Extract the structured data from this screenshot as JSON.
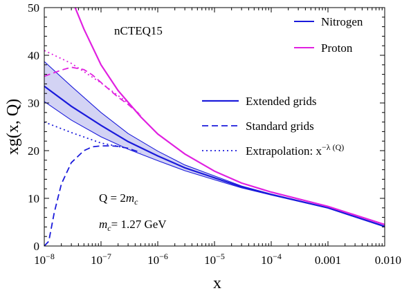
{
  "chart_data": {
    "type": "line",
    "title": "",
    "annotation": "nCTEQ15",
    "xlabel": "x",
    "ylabel": "xg(x, Q)",
    "xscale": "log",
    "xlim": [
      1e-08,
      0.01
    ],
    "ylim": [
      0,
      50
    ],
    "x_ticks": [
      {
        "value": 1e-08,
        "label": "10",
        "exp": "−8"
      },
      {
        "value": 1e-07,
        "label": "10",
        "exp": "−7"
      },
      {
        "value": 1e-06,
        "label": "10",
        "exp": "−6"
      },
      {
        "value": 1e-05,
        "label": "10",
        "exp": "−5"
      },
      {
        "value": 0.0001,
        "label": "10",
        "exp": "−4"
      },
      {
        "value": 0.001,
        "label": "0.001",
        "exp": ""
      },
      {
        "value": 0.01,
        "label": "0.010",
        "exp": ""
      }
    ],
    "y_ticks": [
      0,
      10,
      20,
      30,
      40,
      50
    ],
    "grid": false,
    "colors": {
      "nitrogen": "#1a1adb",
      "proton": "#e020e0",
      "band_fill": "#c4c4f0"
    },
    "legend_material": {
      "position": "top-right",
      "entries": [
        {
          "label": "Nitrogen",
          "color": "#1a1adb",
          "style": "solid"
        },
        {
          "label": "Proton",
          "color": "#e020e0",
          "style": "solid"
        }
      ]
    },
    "legend_method": {
      "position": "center-right",
      "entries": [
        {
          "label": "Extended grids",
          "style": "solid"
        },
        {
          "label": "Standard grids",
          "style": "dashed"
        },
        {
          "label": "Extrapolation: x",
          "sup": "−λ (Q)",
          "style": "dotted"
        }
      ]
    },
    "scale_note": {
      "q_prefix": "Q = 2",
      "q_var": "m",
      "q_sub": "c",
      "m_var": "m",
      "m_sub": "c",
      "m_value": "= 1.27 GeV"
    },
    "series": [
      {
        "name": "Nitrogen",
        "style": "solid",
        "color": "#1a1adb",
        "x": [
          1e-08,
          3e-08,
          1e-07,
          3e-07,
          1e-06,
          3e-06,
          1e-05,
          3e-05,
          0.0001,
          0.001,
          0.01
        ],
        "y": [
          33.5,
          29.3,
          25.3,
          21.9,
          18.9,
          16.4,
          14.3,
          12.4,
          10.8,
          8.0,
          4.1
        ]
      },
      {
        "name": "Nitrogen band upper",
        "style": "band",
        "color": "#1a1adb",
        "x": [
          1e-08,
          3e-08,
          1e-07,
          3e-07,
          1e-06,
          3e-06,
          1e-05,
          3e-05,
          0.0001,
          0.001,
          0.01
        ],
        "y": [
          38.7,
          33.5,
          28.0,
          23.6,
          19.9,
          17.0,
          14.7,
          12.6,
          10.9,
          8.05,
          4.2
        ]
      },
      {
        "name": "Nitrogen band lower",
        "style": "band",
        "color": "#1a1adb",
        "x": [
          1e-08,
          3e-08,
          1e-07,
          3e-07,
          1e-06,
          3e-06,
          1e-05,
          3e-05,
          0.0001,
          0.001,
          0.01
        ],
        "y": [
          30.3,
          26.4,
          22.9,
          20.3,
          17.9,
          15.8,
          13.9,
          12.2,
          10.7,
          7.95,
          4.0
        ]
      },
      {
        "name": "Nitrogen",
        "style": "dashed",
        "color": "#1a1adb",
        "x": [
          1e-08,
          1.2e-08,
          1.5e-08,
          2e-08,
          3e-08,
          5e-08,
          7e-08,
          1e-07,
          1.5e-07,
          2e-07,
          3e-07,
          5e-07
        ],
        "y": [
          0.0,
          1.0,
          7.0,
          13.0,
          17.5,
          20.0,
          20.8,
          21.0,
          21.0,
          20.9,
          20.5,
          19.6
        ]
      },
      {
        "name": "Nitrogen",
        "style": "dotted",
        "color": "#1a1adb",
        "x": [
          1e-08,
          3e-08,
          1e-07,
          2e-07,
          3e-07
        ],
        "y": [
          26.0,
          23.8,
          21.6,
          20.9,
          20.5
        ]
      },
      {
        "name": "Proton",
        "style": "solid",
        "color": "#e020e0",
        "x": [
          3.5e-08,
          5e-08,
          1e-07,
          2e-07,
          5e-07,
          1e-06,
          3e-06,
          1e-05,
          3e-05,
          0.0001,
          0.001,
          0.01
        ],
        "y": [
          50.0,
          45.5,
          38.0,
          32.6,
          27.1,
          23.5,
          19.3,
          15.7,
          13.2,
          11.3,
          8.3,
          4.5
        ]
      },
      {
        "name": "Proton",
        "style": "dashed",
        "color": "#e020e0",
        "x": [
          1e-08,
          2e-08,
          3e-08,
          5e-08,
          7e-08,
          1e-07,
          2e-07,
          3e-07,
          5e-07
        ],
        "y": [
          35.6,
          36.9,
          37.5,
          37.0,
          35.9,
          34.3,
          31.2,
          29.7,
          27.4
        ]
      },
      {
        "name": "Proton",
        "style": "dotted",
        "color": "#e020e0",
        "x": [
          1e-08,
          3e-08,
          1e-07,
          3e-07,
          5e-07
        ],
        "y": [
          41.0,
          38.3,
          34.2,
          30.0,
          27.4
        ]
      }
    ]
  }
}
